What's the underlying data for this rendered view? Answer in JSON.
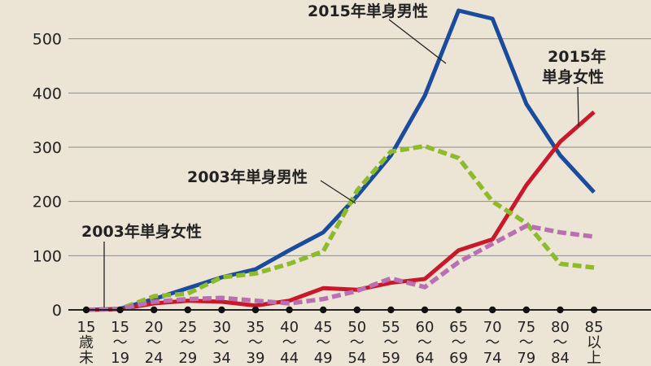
{
  "chart_data": {
    "type": "line",
    "ylim": [
      0,
      550
    ],
    "yticks": [
      0,
      100,
      200,
      300,
      400,
      500
    ],
    "grid": true,
    "categories": [
      [
        "15",
        "歳",
        "未"
      ],
      [
        "15",
        "～",
        "19"
      ],
      [
        "20",
        "～",
        "24"
      ],
      [
        "25",
        "～",
        "29"
      ],
      [
        "30",
        "～",
        "34"
      ],
      [
        "35",
        "～",
        "39"
      ],
      [
        "40",
        "～",
        "44"
      ],
      [
        "45",
        "～",
        "49"
      ],
      [
        "50",
        "～",
        "54"
      ],
      [
        "55",
        "～",
        "59"
      ],
      [
        "60",
        "～",
        "64"
      ],
      [
        "65",
        "～",
        "69"
      ],
      [
        "70",
        "～",
        "74"
      ],
      [
        "75",
        "～",
        "79"
      ],
      [
        "80",
        "～",
        "84"
      ],
      [
        "85",
        "以",
        "上"
      ]
    ],
    "series": [
      {
        "name": "2015年単身男性",
        "color": "#1a4b9c",
        "style": "solid",
        "values": [
          0,
          2,
          20,
          40,
          60,
          75,
          110,
          143,
          210,
          285,
          395,
          552,
          537,
          380,
          285,
          217
        ]
      },
      {
        "name": "2015年単身女性",
        "color": "#c8182a",
        "style": "solid",
        "values": [
          0,
          1,
          12,
          17,
          15,
          8,
          17,
          40,
          37,
          50,
          57,
          110,
          130,
          230,
          310,
          365
        ]
      },
      {
        "name": "2003年単身男性",
        "color": "#8dbb2b",
        "style": "dashed",
        "values": [
          0,
          2,
          25,
          30,
          60,
          67,
          85,
          108,
          220,
          292,
          302,
          280,
          200,
          160,
          85,
          78
        ]
      },
      {
        "name": "2003年単身女性",
        "color": "#b96fb2",
        "style": "dashed",
        "values": [
          0,
          2,
          15,
          20,
          22,
          17,
          12,
          20,
          35,
          58,
          42,
          88,
          122,
          155,
          143,
          135
        ]
      }
    ]
  }
}
